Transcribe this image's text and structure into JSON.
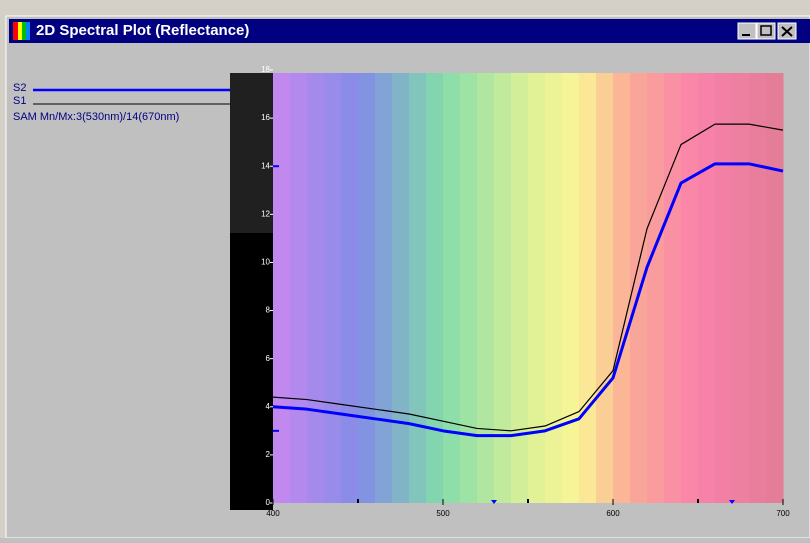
{
  "chart_data": {
    "type": "line",
    "title": "2D Spectral Plot (Reflectance)",
    "annotation": "SAM Mn/Mx:3(530nm)/14(670nm)",
    "x": [
      400,
      420,
      440,
      460,
      480,
      500,
      520,
      540,
      560,
      580,
      600,
      620,
      640,
      660,
      680,
      700
    ],
    "series": [
      {
        "name": "S2",
        "color": "#0000ff",
        "values": [
          4.0,
          3.9,
          3.7,
          3.5,
          3.3,
          3.0,
          2.8,
          2.8,
          3.0,
          3.5,
          5.2,
          9.8,
          13.3,
          14.1,
          14.1,
          13.8
        ]
      },
      {
        "name": "S1",
        "color": "#000000",
        "values": [
          4.4,
          4.3,
          4.1,
          3.9,
          3.7,
          3.4,
          3.1,
          3.0,
          3.2,
          3.8,
          5.5,
          11.4,
          14.9,
          15.75,
          15.75,
          15.5
        ]
      }
    ],
    "xlim": [
      400,
      700
    ],
    "xticks": [
      400,
      500,
      600,
      700
    ],
    "xticks_minor": [
      450,
      550,
      650
    ],
    "ylim": [
      0,
      18
    ],
    "yticks": [
      0,
      2,
      4,
      6,
      8,
      10,
      12,
      14,
      16,
      18
    ],
    "min_max_x": [
      530,
      670
    ],
    "min_max_y": [
      3,
      14
    ]
  }
}
